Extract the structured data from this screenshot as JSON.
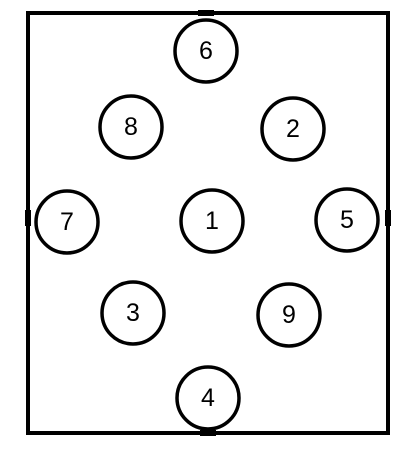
{
  "diagram": {
    "nodes": [
      {
        "id": "6",
        "label": "6"
      },
      {
        "id": "8",
        "label": "8"
      },
      {
        "id": "2",
        "label": "2"
      },
      {
        "id": "7",
        "label": "7"
      },
      {
        "id": "1",
        "label": "1"
      },
      {
        "id": "5",
        "label": "5"
      },
      {
        "id": "3",
        "label": "3"
      },
      {
        "id": "9",
        "label": "9"
      },
      {
        "id": "4",
        "label": "4"
      }
    ]
  },
  "colors": {
    "stroke": "#000000",
    "fill": "#ffffff"
  }
}
